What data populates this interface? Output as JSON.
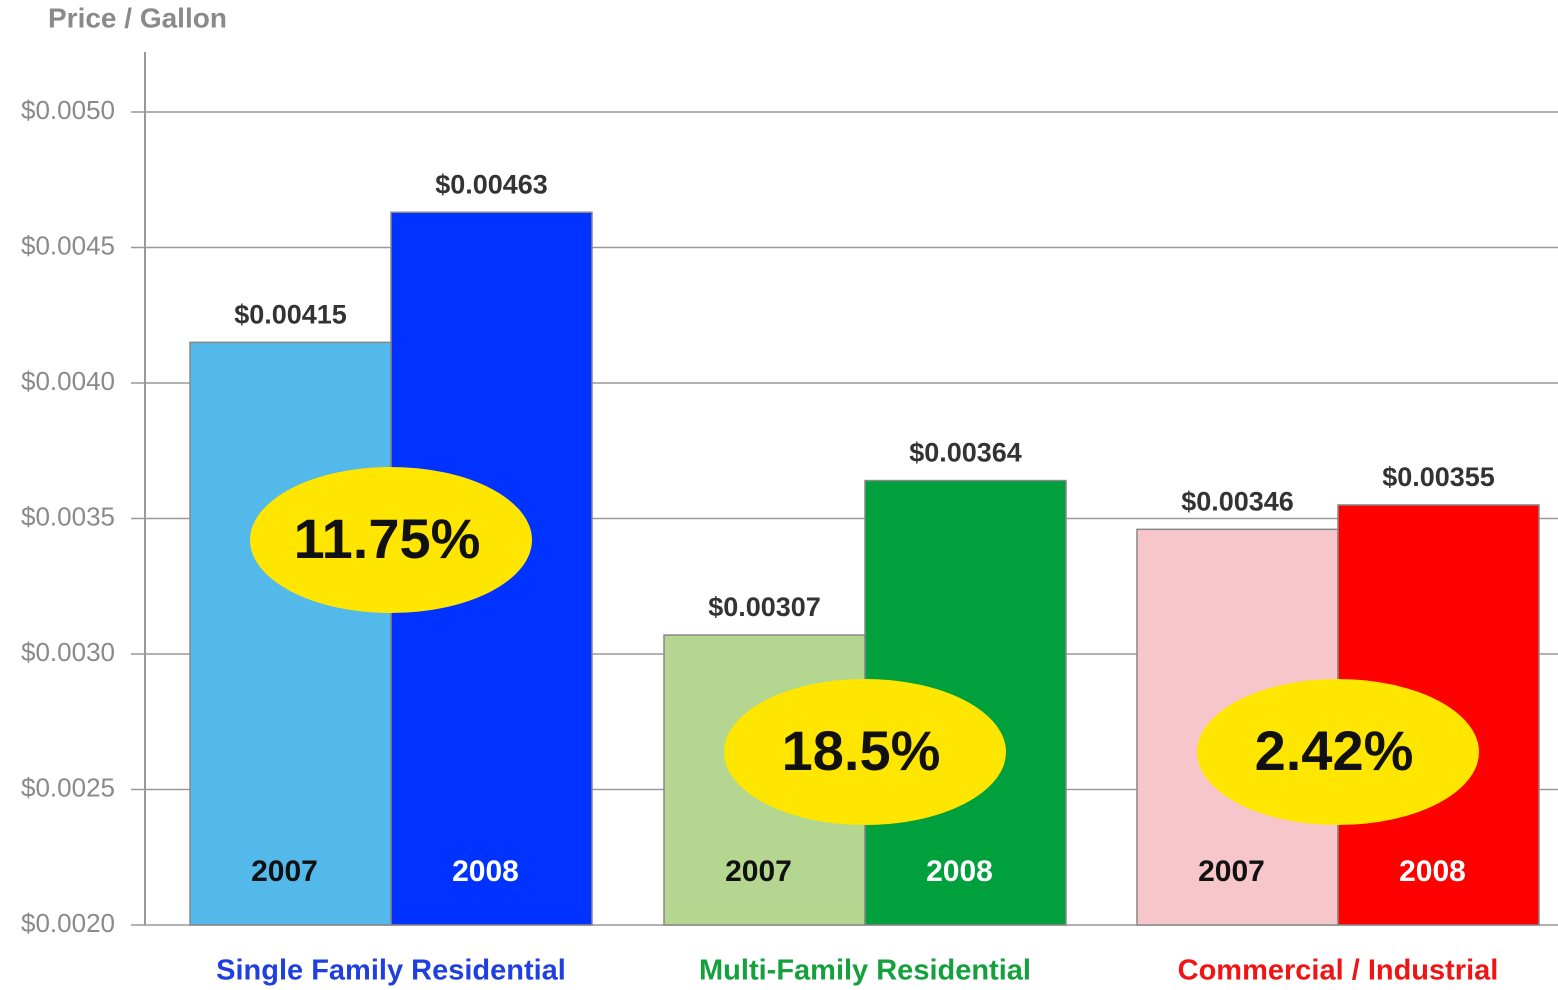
{
  "chart_data": {
    "type": "bar",
    "y_label": "Price / Gallon",
    "categories": [
      "Single Family Residential",
      "Multi-Family Residential",
      "Commercial / Industrial"
    ],
    "category_colors": [
      "#1f3fe0",
      "#14a03c",
      "#f01414"
    ],
    "series": [
      {
        "name": "2007",
        "label_color": "#111111",
        "colors": [
          "#52b9ea",
          "#b5d690",
          "#f7c6ca"
        ],
        "values": [
          0.00415,
          0.00307,
          0.00346
        ],
        "value_labels": [
          "$0.00415",
          "$0.00307",
          "$0.00346"
        ]
      },
      {
        "name": "2008",
        "label_color": "#ffffff",
        "colors": [
          "#0033ff",
          "#00a03c",
          "#ff0000"
        ],
        "values": [
          0.00463,
          0.00364,
          0.00355
        ],
        "value_labels": [
          "$0.00463",
          "$0.00364",
          "$0.00355"
        ]
      }
    ],
    "change_labels": [
      "11.75%",
      "18.5%",
      "2.42%"
    ],
    "ylim": [
      0.002,
      0.0052
    ],
    "yticks": [
      {
        "value": 0.002,
        "label": "$0.0020"
      },
      {
        "value": 0.0025,
        "label": "$0.0025"
      },
      {
        "value": 0.003,
        "label": "$0.0030"
      },
      {
        "value": 0.0035,
        "label": "$0.0035"
      },
      {
        "value": 0.004,
        "label": "$0.0040"
      },
      {
        "value": 0.0045,
        "label": "$0.0045"
      },
      {
        "value": 0.005,
        "label": "$0.0050"
      }
    ],
    "grid": true
  }
}
